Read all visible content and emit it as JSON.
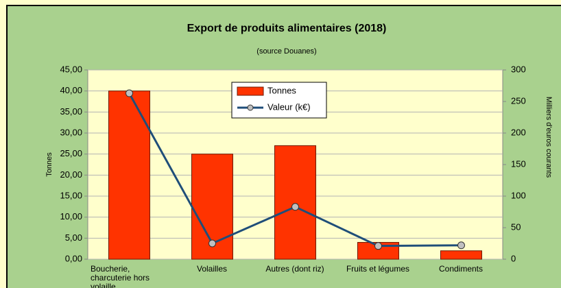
{
  "chart_data": {
    "type": "bar_line",
    "title": "Export de produits alimentaires (2018)",
    "subtitle": "(source Douanes)",
    "y_label": "Tonnes",
    "y2_label": "Milliers d'euros courants",
    "categories": [
      "Boucherie, charcuterie hors volaille",
      "Volailles",
      "Autres (dont riz)",
      "Fruits et légumes",
      "Condiments"
    ],
    "series": [
      {
        "name": "Tonnes",
        "type": "bar",
        "color": "#ff3300",
        "values": [
          40,
          25,
          27,
          4,
          2
        ]
      },
      {
        "name": "Valeur (k€)",
        "type": "line",
        "axis": "y2",
        "color": "#1f4e79",
        "values": [
          263,
          25,
          83,
          21,
          22
        ]
      }
    ],
    "ylim": [
      0,
      45
    ],
    "yticks": [
      {
        "value": 0,
        "label": "0,00"
      },
      {
        "value": 5,
        "label": "5,00"
      },
      {
        "value": 10,
        "label": "10,00"
      },
      {
        "value": 15,
        "label": "15,00"
      },
      {
        "value": 20,
        "label": "20,00"
      },
      {
        "value": 25,
        "label": "25,00"
      },
      {
        "value": 30,
        "label": "30,00"
      },
      {
        "value": 35,
        "label": "35,00"
      },
      {
        "value": 40,
        "label": "40,00"
      },
      {
        "value": 45,
        "label": "45,00"
      }
    ],
    "y2lim": [
      0,
      300
    ],
    "y2ticks": [
      0,
      50,
      100,
      150,
      200,
      250,
      300
    ],
    "grid": true,
    "legend": "top"
  }
}
